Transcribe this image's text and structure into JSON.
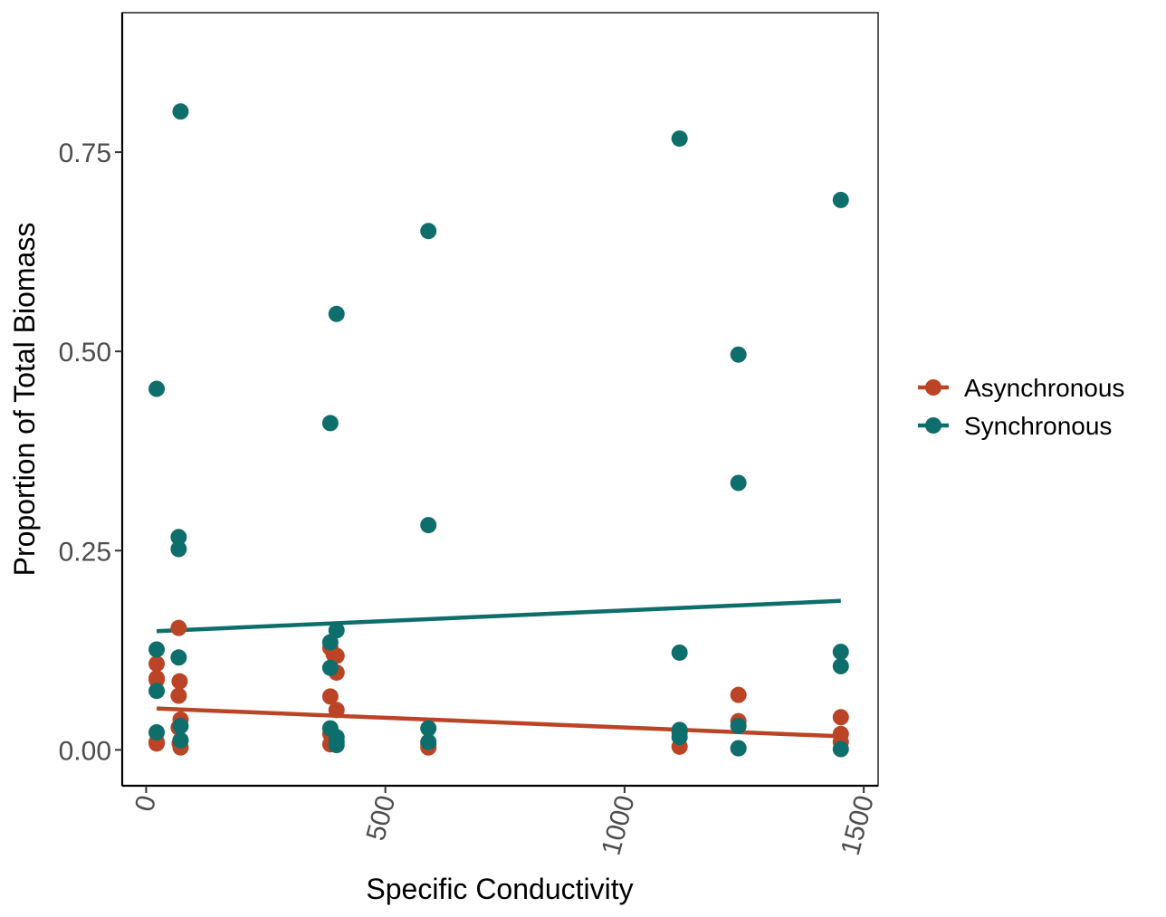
{
  "chart_data": {
    "type": "scatter",
    "xlabel": "Specific Conductivity",
    "ylabel": "Proportion of Total Biomass",
    "xlim": [
      -50,
      1530
    ],
    "ylim": [
      -0.045,
      0.925
    ],
    "xticks": [
      0,
      500,
      1000,
      1500
    ],
    "xtick_labels": [
      "0",
      "500",
      "1000",
      "1500"
    ],
    "yticks": [
      0,
      0.25,
      0.5,
      0.75
    ],
    "ytick_labels": [
      "0.00",
      "0.25",
      "0.50",
      "0.75"
    ],
    "grid": false,
    "legend_position": "right",
    "series": [
      {
        "name": "Asynchronous",
        "color": "#bb4426",
        "points": [
          [
            22,
            0.108
          ],
          [
            22,
            0.09
          ],
          [
            22,
            0.088
          ],
          [
            22,
            0.01
          ],
          [
            22,
            0.008
          ],
          [
            68,
            0.153
          ],
          [
            70,
            0.086
          ],
          [
            68,
            0.068
          ],
          [
            72,
            0.038
          ],
          [
            68,
            0.028
          ],
          [
            72,
            0.012
          ],
          [
            70,
            0.008
          ],
          [
            72,
            0.003
          ],
          [
            385,
            0.128
          ],
          [
            392,
            0.12
          ],
          [
            398,
            0.118
          ],
          [
            398,
            0.097
          ],
          [
            385,
            0.067
          ],
          [
            398,
            0.05
          ],
          [
            385,
            0.02
          ],
          [
            392,
            0.018
          ],
          [
            385,
            0.007
          ],
          [
            590,
            0.007
          ],
          [
            590,
            0.003
          ],
          [
            1115,
            0.022
          ],
          [
            1115,
            0.004
          ],
          [
            1238,
            0.069
          ],
          [
            1238,
            0.036
          ],
          [
            1238,
            0.002
          ],
          [
            1452,
            0.041
          ],
          [
            1452,
            0.02
          ],
          [
            1452,
            0.01
          ]
        ],
        "trend": {
          "x": [
            22,
            1452
          ],
          "y": [
            0.052,
            0.017
          ]
        }
      },
      {
        "name": "Synchronous",
        "color": "#0e6e6b",
        "points": [
          [
            22,
            0.453
          ],
          [
            22,
            0.126
          ],
          [
            22,
            0.074
          ],
          [
            22,
            0.022
          ],
          [
            72,
            0.801
          ],
          [
            68,
            0.267
          ],
          [
            68,
            0.252
          ],
          [
            68,
            0.116
          ],
          [
            72,
            0.03
          ],
          [
            72,
            0.012
          ],
          [
            398,
            0.547
          ],
          [
            385,
            0.41
          ],
          [
            398,
            0.15
          ],
          [
            385,
            0.135
          ],
          [
            385,
            0.103
          ],
          [
            385,
            0.027
          ],
          [
            398,
            0.016
          ],
          [
            398,
            0.01
          ],
          [
            398,
            0.006
          ],
          [
            590,
            0.651
          ],
          [
            590,
            0.282
          ],
          [
            590,
            0.027
          ],
          [
            590,
            0.01
          ],
          [
            1115,
            0.767
          ],
          [
            1115,
            0.122
          ],
          [
            1115,
            0.025
          ],
          [
            1115,
            0.016
          ],
          [
            1238,
            0.496
          ],
          [
            1238,
            0.335
          ],
          [
            1238,
            0.03
          ],
          [
            1238,
            0.002
          ],
          [
            1452,
            0.69
          ],
          [
            1452,
            0.123
          ],
          [
            1452,
            0.105
          ],
          [
            1452,
            0.001
          ]
        ],
        "trend": {
          "x": [
            22,
            1452
          ],
          "y": [
            0.149,
            0.187
          ]
        }
      }
    ]
  }
}
